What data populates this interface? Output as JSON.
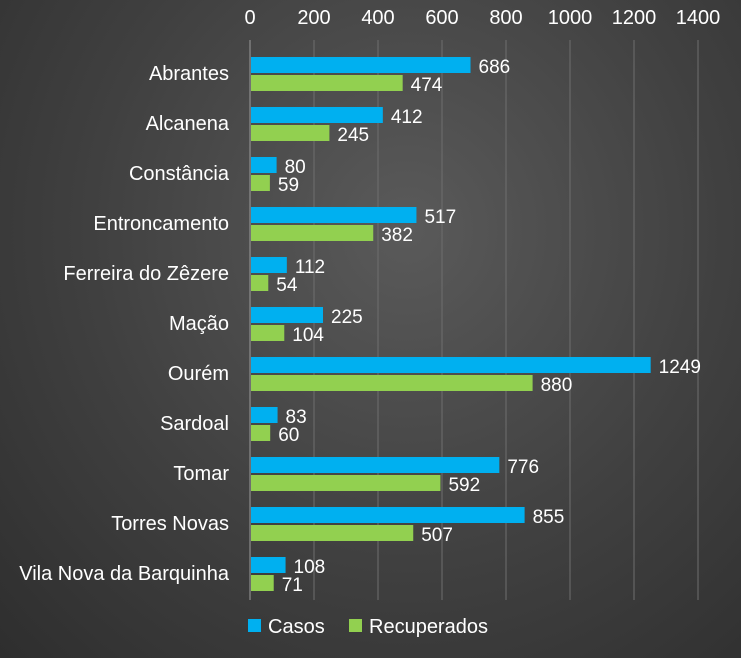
{
  "chart_data": {
    "type": "bar",
    "orientation": "horizontal",
    "title": "",
    "xlabel": "",
    "ylabel": "",
    "xlim": [
      0,
      1400
    ],
    "x_ticks": [
      "0",
      "200",
      "400",
      "600",
      "800",
      "1000",
      "1200",
      "1400"
    ],
    "grid": true,
    "legend_position": "bottom",
    "categories": [
      "Abrantes",
      "Alcanena",
      "Constância",
      "Entroncamento",
      "Ferreira do Zêzere",
      "Mação",
      "Ourém",
      "Sardoal",
      "Tomar",
      "Torres Novas",
      "Vila Nova da Barquinha"
    ],
    "series": [
      {
        "name": "Casos",
        "color": "#00b0f0",
        "values": [
          686,
          412,
          80,
          517,
          112,
          225,
          1249,
          83,
          776,
          855,
          108
        ]
      },
      {
        "name": "Recuperados",
        "color": "#92d050",
        "values": [
          474,
          245,
          59,
          382,
          54,
          104,
          880,
          60,
          592,
          507,
          71
        ]
      }
    ]
  }
}
